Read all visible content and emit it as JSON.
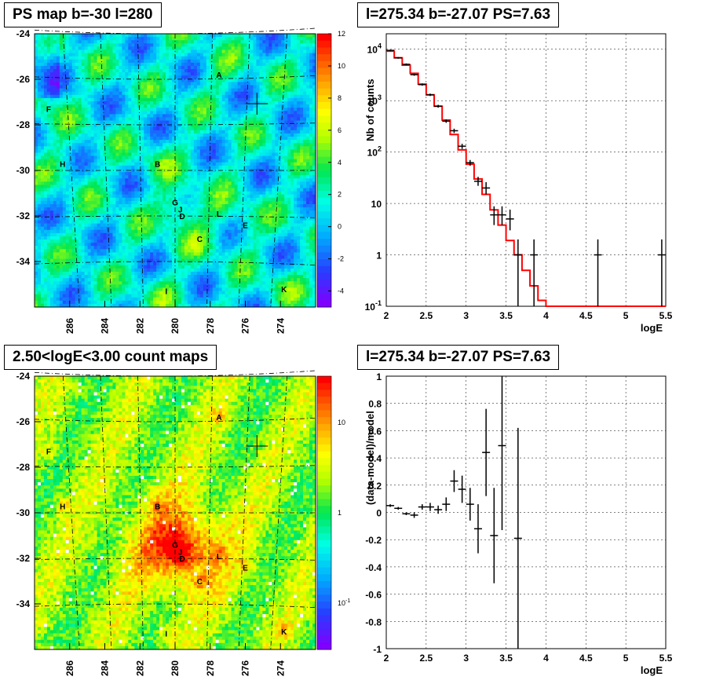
{
  "panels": {
    "ps_map_title": "PS map b=-30 l=280",
    "count_map_title": "2.50<logE<3.00 count maps",
    "spectrum_title": "l=275.34 b=-27.07 PS=7.63",
    "residual_title": "l=275.34 b=-27.07 PS=7.63"
  },
  "colors": {
    "model_line": "#ff0000",
    "data_points": "#000000",
    "grid": "#000000"
  },
  "sources": [
    {
      "label": "A",
      "l": 277.5,
      "b": -25.8
    },
    {
      "label": "F",
      "l": 287.2,
      "b": -27.3
    },
    {
      "label": "H",
      "l": 286.4,
      "b": -29.7
    },
    {
      "label": "B",
      "l": 281.0,
      "b": -29.7
    },
    {
      "label": "G",
      "l": 280.0,
      "b": -31.4
    },
    {
      "label": "J",
      "l": 279.7,
      "b": -31.7
    },
    {
      "label": "D",
      "l": 279.6,
      "b": -32.0
    },
    {
      "label": "L",
      "l": 277.5,
      "b": -31.9
    },
    {
      "label": "E",
      "l": 276.0,
      "b": -32.4
    },
    {
      "label": "C",
      "l": 278.6,
      "b": -33.0
    },
    {
      "label": "I",
      "l": 280.5,
      "b": -35.3
    },
    {
      "label": "K",
      "l": 273.8,
      "b": -35.2
    }
  ],
  "target": {
    "l": 275.34,
    "b": -27.07
  },
  "chart_data": [
    {
      "type": "heatmap",
      "title": "PS map b=-30 l=280",
      "xticks": [
        286,
        284,
        282,
        280,
        278,
        276,
        274
      ],
      "yticks": [
        -24,
        -26,
        -28,
        -30,
        -32,
        -34
      ],
      "xlim": [
        288,
        272
      ],
      "ylim": [
        -36,
        -24
      ],
      "colorbar_ticks": [
        12,
        10,
        8,
        6,
        4,
        2,
        0,
        -2,
        -4
      ],
      "colorbar_range": [
        -5,
        12
      ]
    },
    {
      "type": "line",
      "title": "l=275.34 b=-27.07 PS=7.63",
      "xlabel": "logE",
      "ylabel": "Nb of counts",
      "yscale": "log",
      "xlim": [
        2,
        5.5
      ],
      "ylim": [
        0.1,
        20000
      ],
      "xticks": [
        "2",
        "2.5",
        "3",
        "3.5",
        "4",
        "4.5",
        "5",
        "5.5"
      ],
      "yticks": [
        "10^4",
        "10^3",
        "10^2",
        "10",
        "1",
        "10^-1"
      ],
      "grid": true,
      "series": [
        {
          "values": [
            {
              "x": 2.05,
              "y": 9500,
              "err": [
                9200,
                9800
              ]
            },
            {
              "x": 2.15,
              "y": 6800,
              "err": [
                6550,
                7050
              ]
            },
            {
              "x": 2.25,
              "y": 5100,
              "err": [
                4900,
                5300
              ]
            },
            {
              "x": 2.35,
              "y": 3200,
              "err": [
                3050,
                3350
              ]
            },
            {
              "x": 2.45,
              "y": 2050,
              "err": [
                1950,
                2150
              ]
            },
            {
              "x": 2.55,
              "y": 1300,
              "err": [
                1230,
                1370
              ]
            },
            {
              "x": 2.65,
              "y": 780,
              "err": [
                730,
                830
              ]
            },
            {
              "x": 2.75,
              "y": 400,
              "err": [
                370,
                430
              ]
            },
            {
              "x": 2.85,
              "y": 260,
              "err": [
                235,
                285
              ]
            },
            {
              "x": 2.95,
              "y": 130,
              "err": [
                115,
                145
              ]
            },
            {
              "x": 3.05,
              "y": 62,
              "err": [
                54,
                70
              ]
            },
            {
              "x": 3.15,
              "y": 27,
              "err": [
                22,
                33
              ]
            },
            {
              "x": 3.25,
              "y": 20,
              "err": [
                15,
                26
              ]
            },
            {
              "x": 3.35,
              "y": 6,
              "err": [
                3.8,
                8.8
              ]
            },
            {
              "x": 3.45,
              "y": 6,
              "err": [
                3.8,
                8.8
              ]
            },
            {
              "x": 3.55,
              "y": 5,
              "err": [
                3,
                7.6
              ]
            },
            {
              "x": 3.65,
              "y": 1,
              "err": [
                0.1,
                2
              ]
            },
            {
              "x": 3.85,
              "y": 1,
              "err": [
                0.1,
                2
              ]
            },
            {
              "x": 4.65,
              "y": 1,
              "err": [
                0.1,
                2
              ]
            },
            {
              "x": 5.45,
              "y": 1,
              "err": [
                0.1,
                2
              ]
            }
          ]
        },
        {
          "values": [
            [
              2.0,
              9200
            ],
            [
              2.1,
              6800
            ],
            [
              2.2,
              4900
            ],
            [
              2.3,
              3400
            ],
            [
              2.4,
              2100
            ],
            [
              2.5,
              1300
            ],
            [
              2.6,
              780
            ],
            [
              2.7,
              420
            ],
            [
              2.8,
              220
            ],
            [
              2.9,
              110
            ],
            [
              3.0,
              58
            ],
            [
              3.1,
              30
            ],
            [
              3.2,
              15
            ],
            [
              3.3,
              7.5
            ],
            [
              3.4,
              3.8
            ],
            [
              3.5,
              1.9
            ],
            [
              3.6,
              1.0
            ],
            [
              3.7,
              0.5
            ],
            [
              3.8,
              0.25
            ],
            [
              3.9,
              0.13
            ],
            [
              4.0,
              0.1
            ],
            [
              5.5,
              0.1
            ]
          ]
        }
      ]
    },
    {
      "type": "heatmap",
      "title": "2.50<logE<3.00 count maps",
      "xticks": [
        286,
        284,
        282,
        280,
        278,
        276,
        274
      ],
      "yticks": [
        -24,
        -26,
        -28,
        -30,
        -32,
        -34
      ],
      "xlim": [
        288,
        272
      ],
      "ylim": [
        -36,
        -24
      ],
      "colorbar_ticks": [
        "10",
        "1",
        "10^-1"
      ],
      "colorbar_scale": "log"
    },
    {
      "type": "scatter",
      "title": "l=275.34 b=-27.07 PS=7.63",
      "xlabel": "logE",
      "ylabel": "(data-model)/model",
      "xlim": [
        2,
        5.5
      ],
      "ylim": [
        -1,
        1
      ],
      "xticks": [
        "2",
        "2.5",
        "3",
        "3.5",
        "4",
        "4.5",
        "5",
        "5.5"
      ],
      "yticks": [
        "1",
        "0.8",
        "0.6",
        "0.4",
        "0.2",
        "0",
        "-0.2",
        "-0.4",
        "-0.6",
        "-0.8",
        "-1"
      ],
      "grid": true,
      "series": [
        {
          "values": [
            {
              "x": 2.05,
              "y": 0.05,
              "err": 0.01
            },
            {
              "x": 2.15,
              "y": 0.03,
              "err": 0.01
            },
            {
              "x": 2.25,
              "y": -0.01,
              "err": 0.01
            },
            {
              "x": 2.35,
              "y": -0.02,
              "err": 0.02
            },
            {
              "x": 2.45,
              "y": 0.04,
              "err": 0.02
            },
            {
              "x": 2.55,
              "y": 0.04,
              "err": 0.03
            },
            {
              "x": 2.65,
              "y": 0.02,
              "err": 0.03
            },
            {
              "x": 2.75,
              "y": 0.06,
              "err": 0.05
            },
            {
              "x": 2.85,
              "y": 0.23,
              "err": 0.08
            },
            {
              "x": 2.95,
              "y": 0.17,
              "err": 0.1
            },
            {
              "x": 3.05,
              "y": 0.06,
              "err": 0.12
            },
            {
              "x": 3.15,
              "y": -0.12,
              "err": 0.18
            },
            {
              "x": 3.25,
              "y": 0.44,
              "err": 0.32
            },
            {
              "x": 3.35,
              "y": -0.17,
              "err": 0.35
            },
            {
              "x": 3.45,
              "y": 0.49,
              "err": 0.62
            },
            {
              "x": 3.65,
              "y": -0.19,
              "err": 0.81
            }
          ]
        }
      ]
    }
  ]
}
